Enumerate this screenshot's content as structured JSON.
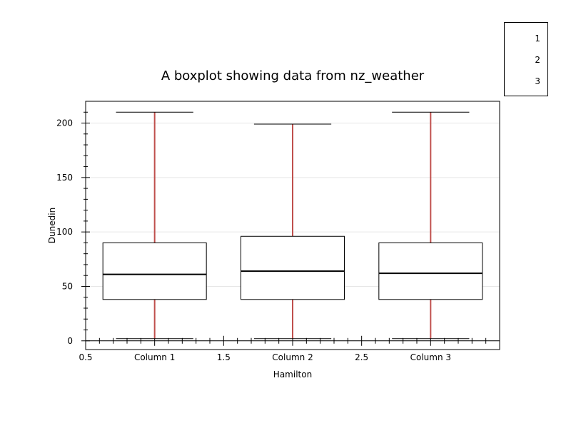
{
  "chart_data": {
    "type": "boxplot",
    "title": "A  boxplot showing data from nz_weather",
    "xlabel": "Hamilton",
    "ylabel": "Dunedin",
    "xlim": [
      0.5,
      3.5
    ],
    "ylim": [
      -8,
      220
    ],
    "x_tick_labels": [
      {
        "pos": 0.5,
        "label": "0.5"
      },
      {
        "pos": 1,
        "label": "Column 1"
      },
      {
        "pos": 1.5,
        "label": "1.5"
      },
      {
        "pos": 2,
        "label": "Column 2"
      },
      {
        "pos": 2.5,
        "label": "2.5"
      },
      {
        "pos": 3,
        "label": "Column 3"
      }
    ],
    "y_ticks": [
      0,
      50,
      100,
      150,
      200
    ],
    "grid": "horizontal",
    "legend": {
      "placement": "top-right",
      "entries": [
        "1",
        "2",
        "3"
      ]
    },
    "series": [
      {
        "category": "Column 1",
        "x": 1,
        "whisker_low": 2,
        "q1": 38,
        "median": 61,
        "q3": 90,
        "whisker_high": 210
      },
      {
        "category": "Column 2",
        "x": 2,
        "whisker_low": 2,
        "q1": 38,
        "median": 64,
        "q3": 96,
        "whisker_high": 199
      },
      {
        "category": "Column 3",
        "x": 3,
        "whisker_low": 2,
        "q1": 38,
        "median": 62,
        "q3": 90,
        "whisker_high": 210
      }
    ],
    "colors": {
      "whisker": "#c0504d",
      "box": "#000000",
      "grid": "#e6e6e6"
    }
  }
}
